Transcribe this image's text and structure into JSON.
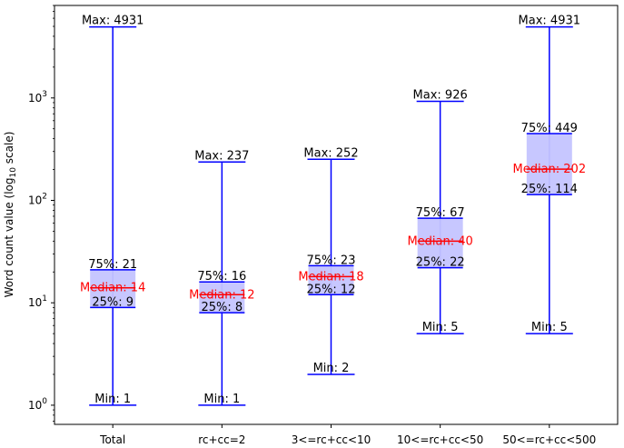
{
  "chart_data": {
    "type": "box",
    "y_scale": "log10",
    "ylim": [
      0.65,
      8000
    ],
    "ylabel_prefix": "Word count value (log",
    "ylabel_sub": "10",
    "ylabel_suffix": " scale)",
    "y_tick_base": "10",
    "y_ticks": [
      {
        "value": 1,
        "exp": "0"
      },
      {
        "value": 10,
        "exp": "1"
      },
      {
        "value": 100,
        "exp": "2"
      },
      {
        "value": 1000,
        "exp": "3"
      }
    ],
    "label_prefixes": {
      "max": "Max: ",
      "q3": "75%: ",
      "median": "Median: ",
      "q1": "25%: ",
      "min": "Min: "
    },
    "colors": {
      "whisker": "#0000ff",
      "box_fill": "#c4c4ff",
      "box_edge": "#0000ff",
      "median_line": "#ff0000",
      "median_text": "#ff0000"
    },
    "categories": [
      "Total",
      "rc+cc=2",
      "3<=rc+cc<10",
      "10<=rc+cc<50",
      "50<=rc+cc<500"
    ],
    "boxes": [
      {
        "category": "Total",
        "min": 1,
        "q1": 9,
        "median": 14,
        "q3": 21,
        "max": 4931
      },
      {
        "category": "rc+cc=2",
        "min": 1,
        "q1": 8,
        "median": 12,
        "q3": 16,
        "max": 237
      },
      {
        "category": "3<=rc+cc<10",
        "min": 2,
        "q1": 12,
        "median": 18,
        "q3": 23,
        "max": 252
      },
      {
        "category": "10<=rc+cc<50",
        "min": 5,
        "q1": 22,
        "median": 40,
        "q3": 67,
        "max": 926
      },
      {
        "category": "50<=rc+cc<500",
        "min": 5,
        "q1": 114,
        "median": 202,
        "q3": 449,
        "max": 4931
      }
    ]
  }
}
